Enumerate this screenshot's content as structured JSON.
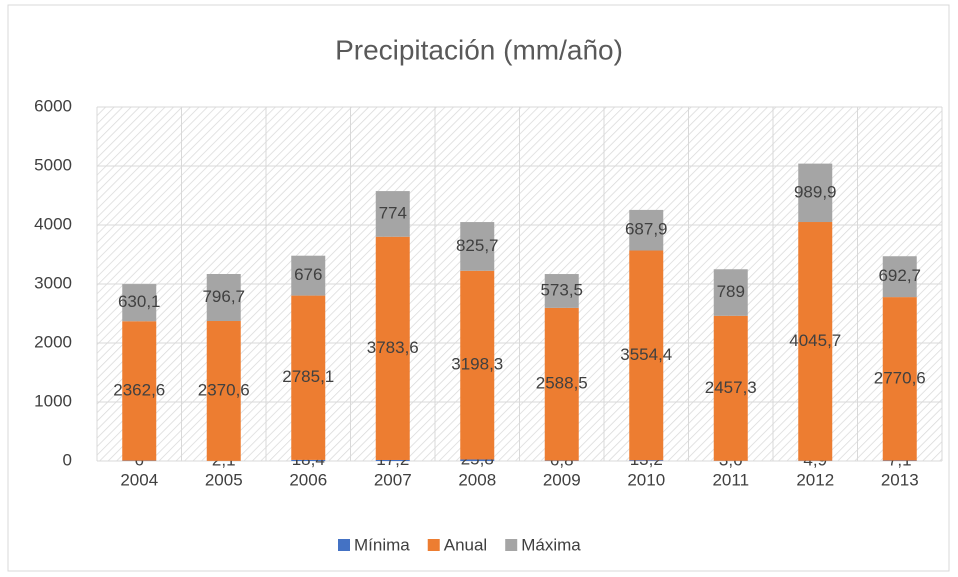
{
  "chart_data": {
    "type": "stacked_bar",
    "title": "Precipitación (mm/año)",
    "categories": [
      "2004",
      "2005",
      "2006",
      "2007",
      "2008",
      "2009",
      "2010",
      "2011",
      "2012",
      "2013"
    ],
    "series": [
      {
        "name": "Mínima",
        "color": "#4472c4",
        "values": [
          6,
          2.1,
          18.4,
          17.2,
          25.8,
          6.8,
          13.2,
          3.6,
          4.9,
          7.1
        ],
        "value_labels": [
          "6",
          "2,1",
          "18,4",
          "17,2",
          "25,8",
          "6,8",
          "13,2",
          "3,6",
          "4,9",
          "7,1"
        ]
      },
      {
        "name": "Anual",
        "color": "#ed7d31",
        "values": [
          2362.6,
          2370.6,
          2785.1,
          3783.6,
          3198.3,
          2588.5,
          3554.4,
          2457.3,
          4045.7,
          2770.6
        ],
        "value_labels": [
          "2362,6",
          "2370,6",
          "2785,1",
          "3783,6",
          "3198,3",
          "2588,5",
          "3554,4",
          "2457,3",
          "4045,7",
          "2770,6"
        ]
      },
      {
        "name": "Máxima",
        "color": "#a5a5a5",
        "values": [
          630.1,
          796.7,
          676,
          774,
          825.7,
          573.5,
          687.9,
          789,
          989.9,
          692.7
        ],
        "value_labels": [
          "630,1",
          "796,7",
          "676",
          "774",
          "825,7",
          "573,5",
          "687,9",
          "789",
          "989,9",
          "692,7"
        ]
      }
    ],
    "ylim": [
      0,
      6000
    ],
    "yticks": [
      0,
      1000,
      2000,
      3000,
      4000,
      5000,
      6000
    ],
    "grid": true,
    "legend": "bottom"
  }
}
